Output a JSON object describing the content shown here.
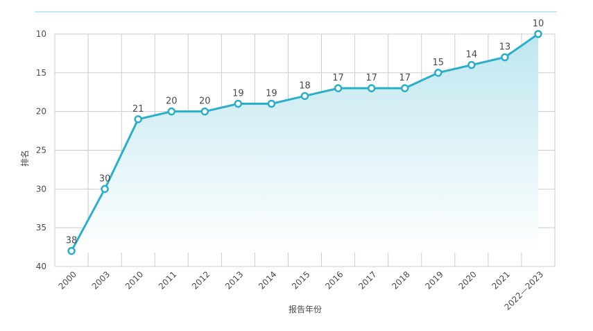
{
  "colors": {
    "line": "#2aafc8",
    "top_rule": "#8ad4e2",
    "grid": "#c8ccd1",
    "area_top": "#bfe6ef",
    "area_bottom": "#ffffff",
    "text": "#4a4a4a"
  },
  "chart_data": {
    "type": "area",
    "title": "",
    "xlabel": "报告年份",
    "ylabel": "排名",
    "y_reversed": true,
    "ylim": [
      10,
      40
    ],
    "yticks": [
      10,
      15,
      20,
      25,
      30,
      35,
      40
    ],
    "yticks_labels": [
      "10",
      "15",
      "20",
      "25",
      "30",
      "35",
      "40"
    ],
    "grid": true,
    "categories": [
      "2000",
      "2003",
      "2010",
      "2011",
      "2012",
      "2013",
      "2014",
      "2015",
      "2016",
      "2017",
      "2018",
      "2019",
      "2020",
      "2021",
      "2022—2023"
    ],
    "values": [
      38,
      30,
      21,
      20,
      20,
      19,
      19,
      18,
      17,
      17,
      17,
      15,
      14,
      13,
      10
    ],
    "value_labels": [
      "38",
      "30",
      "21",
      "20",
      "20",
      "19",
      "19",
      "18",
      "17",
      "17",
      "17",
      "15",
      "14",
      "13",
      "10"
    ]
  }
}
